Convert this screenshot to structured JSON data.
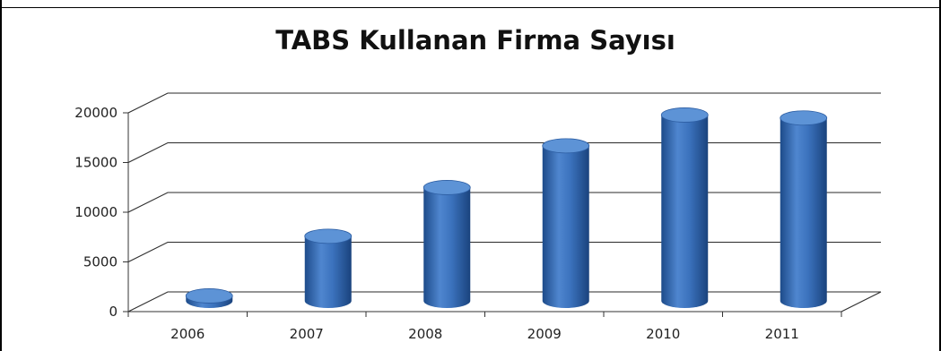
{
  "chart_data": {
    "type": "bar",
    "title": "TABS Kullanan Firma Sayısı",
    "categories": [
      "2006",
      "2007",
      "2008",
      "2009",
      "2010",
      "2011"
    ],
    "values": [
      500,
      6500,
      11400,
      15600,
      18700,
      18400
    ],
    "ylim": [
      0,
      20000
    ],
    "yticks": [
      "0",
      "5000",
      "10000",
      "15000",
      "20000"
    ],
    "xlabel": "",
    "ylabel": "",
    "grid": true,
    "style": "3d-cylinder",
    "bar_color": "#3a6fb6",
    "bar_top_color": "#5d93d6"
  }
}
